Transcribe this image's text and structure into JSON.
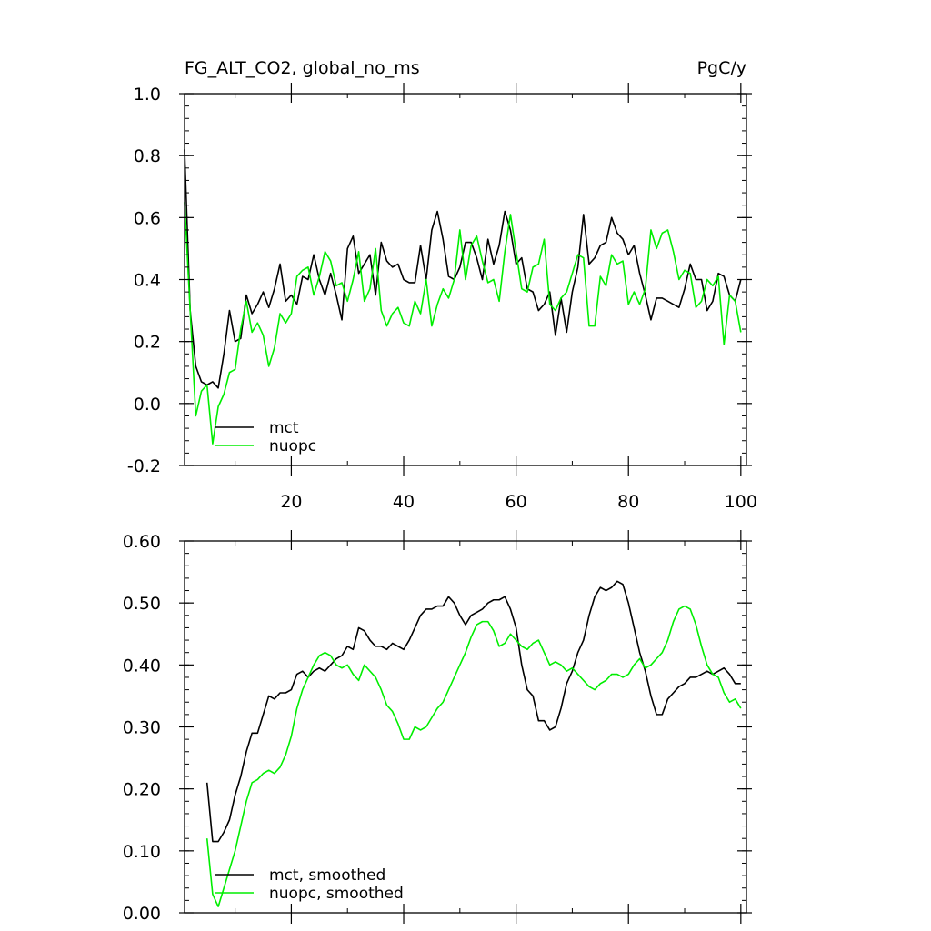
{
  "chart_data": [
    {
      "type": "line",
      "title": "FG_ALT_CO2, global_no_ms",
      "units": "PgC/y",
      "xlabel": "",
      "ylabel": "",
      "xlim": [
        1,
        101
      ],
      "ylim": [
        -0.2,
        1.0
      ],
      "xticks": [
        20,
        40,
        60,
        80,
        100
      ],
      "yticks": [
        -0.2,
        0.0,
        0.2,
        0.4,
        0.6,
        0.8,
        1.0
      ],
      "ytick_labels": [
        "-0.2",
        "0.0",
        "0.2",
        "0.4",
        "0.6",
        "0.8",
        "1.0"
      ],
      "show_x_tick_labels": true,
      "grid": false,
      "legend_position": "bottom-left",
      "series": [
        {
          "name": "mct",
          "color": "#000000",
          "x_start": 1,
          "values": [
            0.82,
            0.3,
            0.12,
            0.07,
            0.06,
            0.07,
            0.05,
            0.16,
            0.3,
            0.2,
            0.21,
            0.35,
            0.29,
            0.32,
            0.36,
            0.31,
            0.37,
            0.45,
            0.33,
            0.35,
            0.32,
            0.41,
            0.4,
            0.48,
            0.4,
            0.35,
            0.42,
            0.35,
            0.27,
            0.5,
            0.54,
            0.42,
            0.45,
            0.48,
            0.35,
            0.52,
            0.46,
            0.44,
            0.45,
            0.4,
            0.39,
            0.39,
            0.51,
            0.4,
            0.56,
            0.62,
            0.53,
            0.41,
            0.4,
            0.44,
            0.52,
            0.52,
            0.47,
            0.4,
            0.53,
            0.45,
            0.51,
            0.62,
            0.56,
            0.45,
            0.47,
            0.37,
            0.36,
            0.3,
            0.32,
            0.36,
            0.22,
            0.34,
            0.23,
            0.36,
            0.44,
            0.61,
            0.45,
            0.47,
            0.51,
            0.52,
            0.6,
            0.55,
            0.53,
            0.48,
            0.51,
            0.42,
            0.35,
            0.27,
            0.34,
            0.34,
            0.33,
            0.32,
            0.31,
            0.37,
            0.45,
            0.4,
            0.4,
            0.3,
            0.33,
            0.42,
            0.41,
            0.35,
            0.33,
            0.4
          ]
        },
        {
          "name": "nuopc",
          "color": "#00ee00",
          "x_start": 1,
          "values": [
            0.65,
            0.3,
            -0.04,
            0.04,
            0.06,
            -0.13,
            -0.01,
            0.03,
            0.1,
            0.11,
            0.24,
            0.33,
            0.23,
            0.26,
            0.22,
            0.12,
            0.18,
            0.29,
            0.26,
            0.29,
            0.41,
            0.43,
            0.44,
            0.35,
            0.41,
            0.49,
            0.46,
            0.38,
            0.39,
            0.33,
            0.4,
            0.49,
            0.33,
            0.37,
            0.5,
            0.3,
            0.25,
            0.29,
            0.31,
            0.26,
            0.25,
            0.33,
            0.29,
            0.4,
            0.25,
            0.32,
            0.37,
            0.34,
            0.4,
            0.56,
            0.4,
            0.51,
            0.54,
            0.46,
            0.39,
            0.4,
            0.33,
            0.49,
            0.61,
            0.49,
            0.37,
            0.36,
            0.44,
            0.45,
            0.53,
            0.32,
            0.3,
            0.34,
            0.36,
            0.42,
            0.48,
            0.47,
            0.25,
            0.25,
            0.41,
            0.38,
            0.48,
            0.45,
            0.46,
            0.32,
            0.36,
            0.32,
            0.37,
            0.56,
            0.5,
            0.55,
            0.56,
            0.49,
            0.4,
            0.43,
            0.42,
            0.31,
            0.33,
            0.4,
            0.38,
            0.41,
            0.19,
            0.35,
            0.33,
            0.23
          ]
        }
      ]
    },
    {
      "type": "line",
      "title": "",
      "xlabel": "",
      "ylabel": "",
      "xlim": [
        1,
        101
      ],
      "ylim": [
        0.0,
        0.6
      ],
      "xticks": [
        20,
        40,
        60,
        80,
        100
      ],
      "yticks": [
        0.0,
        0.1,
        0.2,
        0.3,
        0.4,
        0.5,
        0.6
      ],
      "ytick_labels": [
        "0.00",
        "0.10",
        "0.20",
        "0.30",
        "0.40",
        "0.50",
        "0.60"
      ],
      "show_x_tick_labels": false,
      "grid": false,
      "legend_position": "bottom-left",
      "series": [
        {
          "name": "mct, smoothed",
          "color": "#000000",
          "x_start": 5,
          "values": [
            0.21,
            0.115,
            0.115,
            0.13,
            0.15,
            0.19,
            0.22,
            0.26,
            0.29,
            0.29,
            0.32,
            0.35,
            0.345,
            0.355,
            0.355,
            0.36,
            0.385,
            0.39,
            0.38,
            0.39,
            0.395,
            0.39,
            0.4,
            0.41,
            0.415,
            0.43,
            0.425,
            0.46,
            0.455,
            0.44,
            0.43,
            0.43,
            0.425,
            0.435,
            0.43,
            0.425,
            0.44,
            0.46,
            0.48,
            0.49,
            0.49,
            0.495,
            0.495,
            0.51,
            0.5,
            0.48,
            0.465,
            0.48,
            0.485,
            0.49,
            0.5,
            0.505,
            0.505,
            0.51,
            0.49,
            0.46,
            0.4,
            0.36,
            0.35,
            0.31,
            0.31,
            0.295,
            0.3,
            0.33,
            0.37,
            0.39,
            0.42,
            0.44,
            0.48,
            0.51,
            0.525,
            0.52,
            0.525,
            0.535,
            0.53,
            0.5,
            0.46,
            0.42,
            0.39,
            0.35,
            0.32,
            0.32,
            0.345,
            0.355,
            0.365,
            0.37,
            0.38,
            0.38,
            0.385,
            0.39,
            0.385,
            0.39,
            0.395,
            0.385,
            0.37,
            0.37
          ]
        },
        {
          "name": "nuopc, smoothed",
          "color": "#00ee00",
          "x_start": 5,
          "values": [
            0.12,
            0.03,
            0.01,
            0.04,
            0.07,
            0.1,
            0.14,
            0.18,
            0.21,
            0.215,
            0.225,
            0.23,
            0.225,
            0.235,
            0.255,
            0.285,
            0.33,
            0.36,
            0.38,
            0.4,
            0.415,
            0.42,
            0.415,
            0.4,
            0.395,
            0.4,
            0.385,
            0.375,
            0.4,
            0.39,
            0.38,
            0.36,
            0.335,
            0.325,
            0.305,
            0.28,
            0.28,
            0.3,
            0.295,
            0.3,
            0.315,
            0.33,
            0.34,
            0.36,
            0.38,
            0.4,
            0.42,
            0.445,
            0.465,
            0.47,
            0.47,
            0.455,
            0.43,
            0.435,
            0.45,
            0.44,
            0.43,
            0.425,
            0.435,
            0.44,
            0.42,
            0.4,
            0.405,
            0.4,
            0.39,
            0.395,
            0.385,
            0.375,
            0.365,
            0.36,
            0.37,
            0.375,
            0.385,
            0.385,
            0.38,
            0.385,
            0.4,
            0.41,
            0.395,
            0.4,
            0.41,
            0.42,
            0.44,
            0.47,
            0.49,
            0.495,
            0.49,
            0.465,
            0.43,
            0.4,
            0.385,
            0.38,
            0.355,
            0.34,
            0.345,
            0.33
          ]
        }
      ]
    }
  ]
}
